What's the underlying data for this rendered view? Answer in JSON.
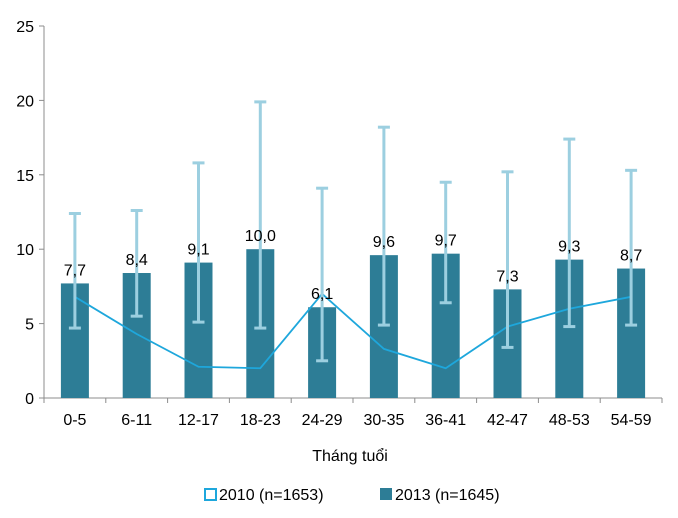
{
  "chart_data": {
    "type": "bar",
    "categories": [
      "0-5",
      "6-11",
      "12-17",
      "18-23",
      "24-29",
      "30-35",
      "36-41",
      "42-47",
      "48-53",
      "54-59"
    ],
    "xlabel": "Tháng tuổi",
    "ylabel": "",
    "ylim": [
      0,
      25
    ],
    "yticks": [
      0,
      5,
      10,
      15,
      20,
      25
    ],
    "grid": false,
    "legend_position": "bottom",
    "series": [
      {
        "name": "2010 (n=1653)",
        "type": "line",
        "color": "#1ea7dc",
        "values": [
          6.8,
          4.3,
          2.1,
          2.0,
          7.0,
          3.3,
          2.0,
          4.8,
          6.0,
          6.8
        ]
      },
      {
        "name": "2013 (n=1645)",
        "type": "bar",
        "color": "#2d7d96",
        "values": [
          7.7,
          8.4,
          9.1,
          10.0,
          6.1,
          9.6,
          9.7,
          7.3,
          9.3,
          8.7
        ],
        "labels": [
          "7,7",
          "8,4",
          "9,1",
          "10,0",
          "6,1",
          "9,6",
          "9,7",
          "7,3",
          "9,3",
          "8,7"
        ],
        "error_low": [
          4.7,
          5.5,
          5.1,
          4.7,
          2.5,
          4.9,
          6.4,
          3.4,
          4.8,
          4.9
        ],
        "error_high": [
          12.4,
          12.6,
          15.8,
          19.9,
          14.1,
          18.2,
          14.5,
          15.2,
          17.4,
          15.3
        ]
      }
    ],
    "error_bar_color": "#9ccfe0"
  }
}
